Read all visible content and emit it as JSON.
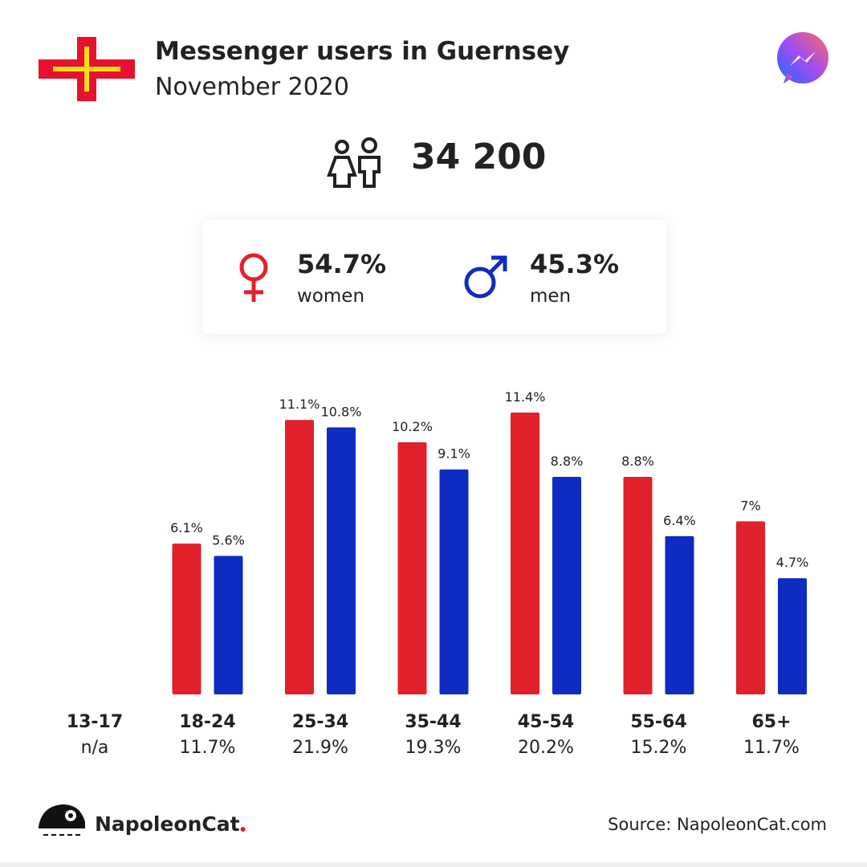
{
  "header": {
    "title": "Messenger users in Guernsey",
    "subtitle": "November 2020"
  },
  "total": "34 200",
  "gender": [
    {
      "share": "54.7%",
      "label": "women"
    },
    {
      "share": "45.3%",
      "label": "men"
    }
  ],
  "chart_data": {
    "type": "bar",
    "categories": [
      "13-17",
      "18-24",
      "25-34",
      "35-44",
      "45-54",
      "55-64",
      "65+"
    ],
    "category_totals": [
      "n/a",
      "11.7%",
      "21.9%",
      "19.3%",
      "20.2%",
      "15.2%",
      "11.7%"
    ],
    "series": [
      {
        "color": "#e0212b",
        "values": [
          null,
          6.1,
          11.1,
          10.2,
          11.4,
          8.8,
          7
        ],
        "value_labels": [
          null,
          "6.1%",
          "11.1%",
          "10.2%",
          "11.4%",
          "8.8%",
          "7%"
        ]
      },
      {
        "color": "#0f2cc2",
        "values": [
          null,
          5.6,
          10.8,
          9.1,
          8.8,
          6.4,
          4.7
        ],
        "value_labels": [
          null,
          "5.6%",
          "10.8%",
          "9.1%",
          "8.8%",
          "6.4%",
          "4.7%"
        ]
      }
    ]
  },
  "footer": {
    "brand": "NapoleonCat",
    "source": "Source: NapoleonCat.com"
  }
}
